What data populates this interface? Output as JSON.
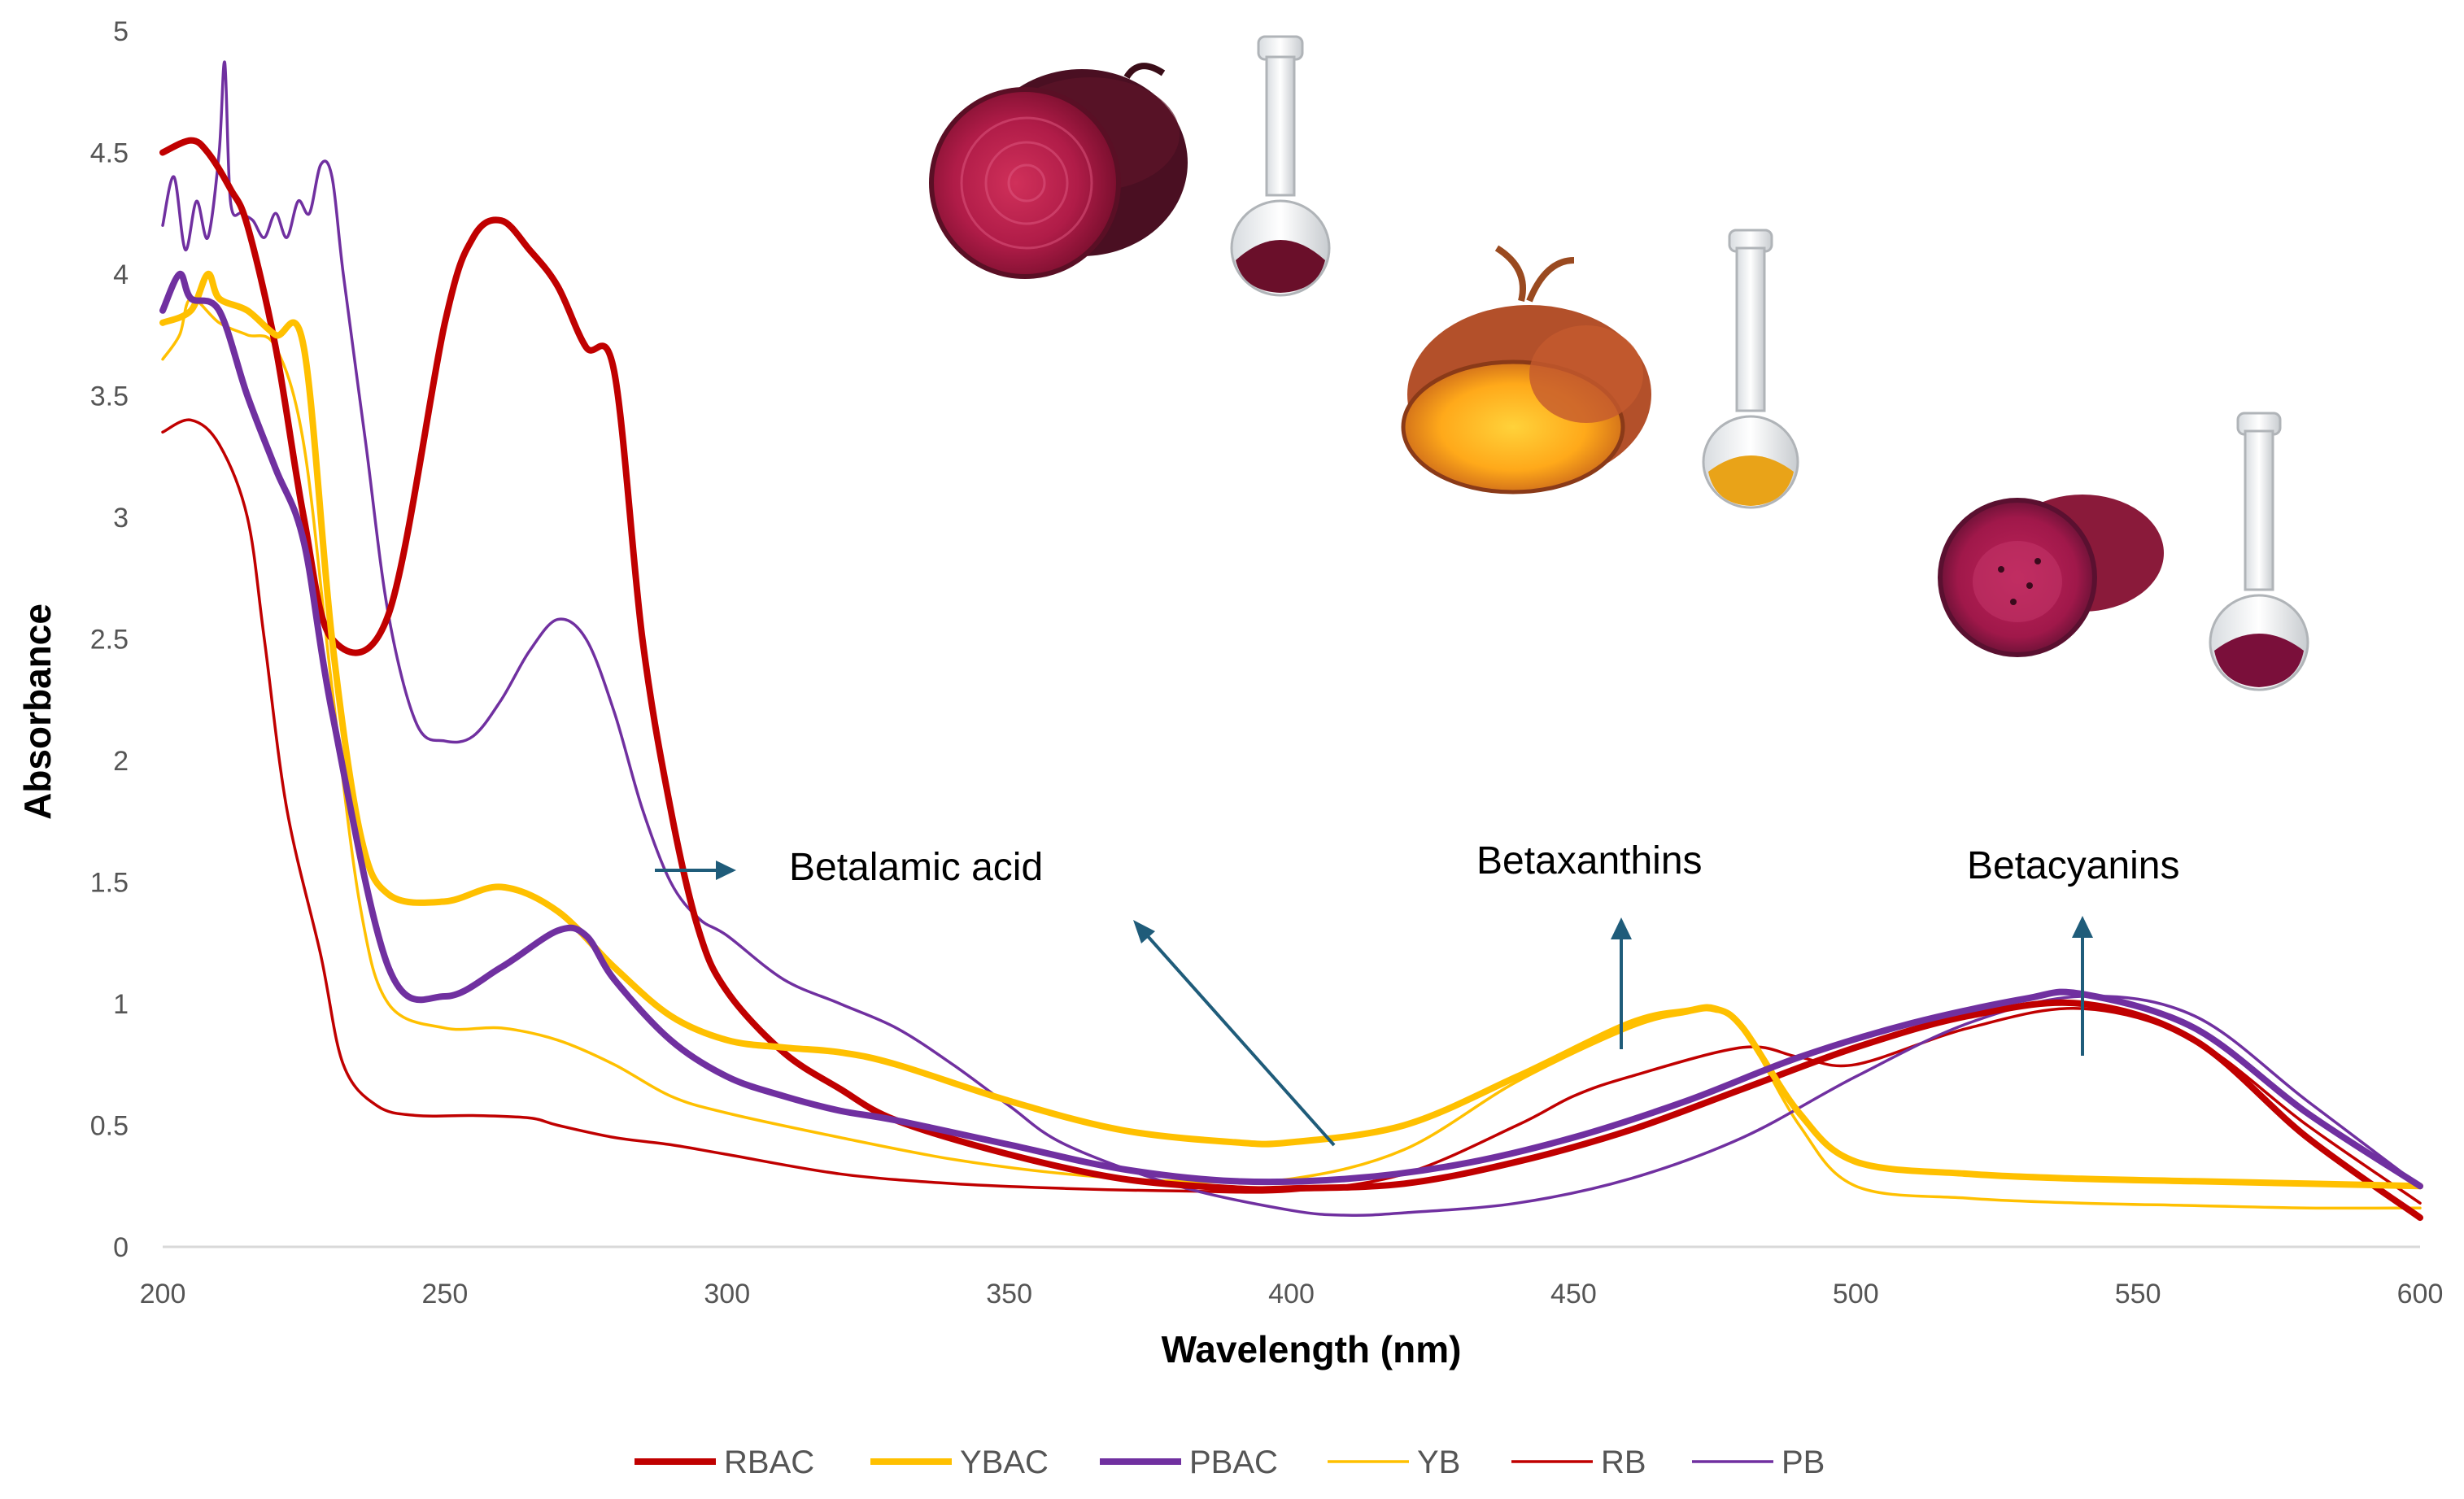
{
  "chart_data": {
    "type": "line",
    "title": "",
    "xlabel": "Wavelength (nm)",
    "ylabel": "Absorbance",
    "xlim": [
      200,
      600
    ],
    "ylim": [
      0,
      5
    ],
    "x_ticks": [
      "200",
      "250",
      "300",
      "350",
      "400",
      "450",
      "500",
      "550",
      "600"
    ],
    "y_ticks": [
      "0",
      "0.5",
      "1",
      "1.5",
      "2",
      "2.5",
      "3",
      "3.5",
      "4",
      "4.5",
      "5"
    ],
    "grid": false,
    "legend_position": "bottom",
    "series": [
      {
        "name": "RBAC",
        "color": "#c00000",
        "width": "thick",
        "x": [
          200,
          205,
          208,
          212,
          215,
          220,
          225,
          230,
          240,
          250,
          255,
          260,
          265,
          270,
          275,
          280,
          285,
          290,
          295,
          300,
          310,
          320,
          330,
          350,
          370,
          390,
          400,
          420,
          440,
          460,
          480,
          500,
          520,
          540,
          560,
          580,
          600
        ],
        "y": [
          4.5,
          4.55,
          4.5,
          4.35,
          4.2,
          3.7,
          3.0,
          2.5,
          2.6,
          3.8,
          4.15,
          4.22,
          4.1,
          3.95,
          3.7,
          3.6,
          2.5,
          1.8,
          1.3,
          1.05,
          0.8,
          0.65,
          0.52,
          0.38,
          0.28,
          0.24,
          0.24,
          0.26,
          0.35,
          0.48,
          0.65,
          0.82,
          0.95,
          1.0,
          0.85,
          0.45,
          0.12
        ]
      },
      {
        "name": "YBAC",
        "color": "#ffc000",
        "width": "thick",
        "x": [
          200,
          205,
          208,
          210,
          215,
          220,
          225,
          230,
          235,
          240,
          250,
          260,
          270,
          280,
          290,
          300,
          310,
          320,
          330,
          350,
          370,
          390,
          400,
          420,
          440,
          460,
          470,
          475,
          480,
          490,
          500,
          520,
          540,
          560,
          580,
          600
        ],
        "y": [
          3.8,
          3.85,
          4.0,
          3.9,
          3.85,
          3.75,
          3.7,
          2.5,
          1.7,
          1.45,
          1.42,
          1.48,
          1.38,
          1.15,
          0.95,
          0.85,
          0.82,
          0.8,
          0.75,
          0.6,
          0.48,
          0.43,
          0.43,
          0.5,
          0.7,
          0.92,
          0.97,
          0.98,
          0.9,
          0.55,
          0.35,
          0.3,
          0.28,
          0.27,
          0.26,
          0.25
        ]
      },
      {
        "name": "PBAC",
        "color": "#7030a0",
        "width": "thick",
        "x": [
          200,
          203,
          205,
          210,
          215,
          220,
          225,
          230,
          240,
          250,
          260,
          270,
          275,
          280,
          290,
          300,
          310,
          320,
          330,
          350,
          370,
          390,
          410,
          430,
          450,
          470,
          490,
          510,
          530,
          540,
          560,
          580,
          600
        ],
        "y": [
          3.85,
          4.0,
          3.9,
          3.85,
          3.5,
          3.2,
          2.9,
          2.2,
          1.15,
          1.03,
          1.15,
          1.3,
          1.28,
          1.1,
          0.85,
          0.7,
          0.62,
          0.56,
          0.52,
          0.42,
          0.32,
          0.27,
          0.28,
          0.34,
          0.45,
          0.6,
          0.78,
          0.92,
          1.02,
          1.04,
          0.9,
          0.55,
          0.25
        ]
      },
      {
        "name": "YB",
        "color": "#ffc000",
        "width": "thin",
        "x": [
          200,
          203,
          205,
          210,
          215,
          220,
          225,
          230,
          235,
          240,
          250,
          260,
          270,
          280,
          290,
          300,
          320,
          340,
          360,
          380,
          400,
          420,
          440,
          460,
          470,
          475,
          480,
          490,
          500,
          520,
          540,
          560,
          580,
          600
        ],
        "y": [
          3.65,
          3.75,
          3.9,
          3.8,
          3.75,
          3.7,
          3.3,
          2.3,
          1.4,
          1.0,
          0.9,
          0.9,
          0.85,
          0.75,
          0.62,
          0.55,
          0.45,
          0.36,
          0.3,
          0.27,
          0.28,
          0.4,
          0.68,
          0.9,
          0.96,
          0.97,
          0.9,
          0.5,
          0.25,
          0.2,
          0.18,
          0.17,
          0.16,
          0.16
        ]
      },
      {
        "name": "RB",
        "color": "#c00000",
        "width": "thin",
        "x": [
          200,
          205,
          210,
          215,
          218,
          222,
          228,
          232,
          238,
          245,
          255,
          265,
          270,
          280,
          290,
          300,
          320,
          340,
          360,
          380,
          400,
          420,
          440,
          450,
          460,
          480,
          490,
          500,
          520,
          540,
          560,
          580,
          600
        ],
        "y": [
          3.35,
          3.4,
          3.3,
          3.0,
          2.5,
          1.8,
          1.2,
          0.75,
          0.58,
          0.54,
          0.54,
          0.53,
          0.5,
          0.45,
          0.42,
          0.38,
          0.3,
          0.26,
          0.24,
          0.23,
          0.23,
          0.3,
          0.5,
          0.62,
          0.7,
          0.82,
          0.78,
          0.75,
          0.9,
          0.98,
          0.85,
          0.5,
          0.18
        ]
      },
      {
        "name": "PB",
        "color": "#7030a0",
        "width": "thin",
        "x": [
          200,
          202,
          204,
          206,
          208,
          210,
          211,
          212,
          214,
          216,
          218,
          220,
          222,
          224,
          226,
          228,
          230,
          232,
          236,
          240,
          245,
          250,
          255,
          260,
          265,
          270,
          275,
          280,
          285,
          290,
          295,
          300,
          310,
          320,
          330,
          340,
          350,
          360,
          380,
          400,
          410,
          420,
          440,
          460,
          480,
          500,
          520,
          540,
          560,
          580,
          600
        ],
        "y": [
          4.2,
          4.4,
          4.1,
          4.3,
          4.15,
          4.5,
          4.87,
          4.3,
          4.25,
          4.22,
          4.15,
          4.25,
          4.15,
          4.3,
          4.25,
          4.45,
          4.4,
          4.0,
          3.3,
          2.6,
          2.15,
          2.08,
          2.1,
          2.25,
          2.45,
          2.58,
          2.5,
          2.2,
          1.8,
          1.5,
          1.35,
          1.28,
          1.1,
          1.0,
          0.9,
          0.75,
          0.58,
          0.42,
          0.25,
          0.15,
          0.13,
          0.14,
          0.18,
          0.28,
          0.45,
          0.7,
          0.92,
          1.03,
          0.95,
          0.6,
          0.25
        ]
      }
    ],
    "annotations": [
      {
        "text": "Betalamic acid",
        "x": 330,
        "y": 1.55
      },
      {
        "text": "Betaxanthins",
        "x": 457,
        "y": 1.58
      },
      {
        "text": "Betacyanins",
        "x": 540,
        "y": 1.56
      }
    ]
  },
  "images": [
    {
      "name": "red-beetroot-image"
    },
    {
      "name": "red-flask-image"
    },
    {
      "name": "yellow-beetroot-image"
    },
    {
      "name": "yellow-flask-image"
    },
    {
      "name": "prickly-pear-image"
    },
    {
      "name": "purple-flask-image"
    }
  ]
}
